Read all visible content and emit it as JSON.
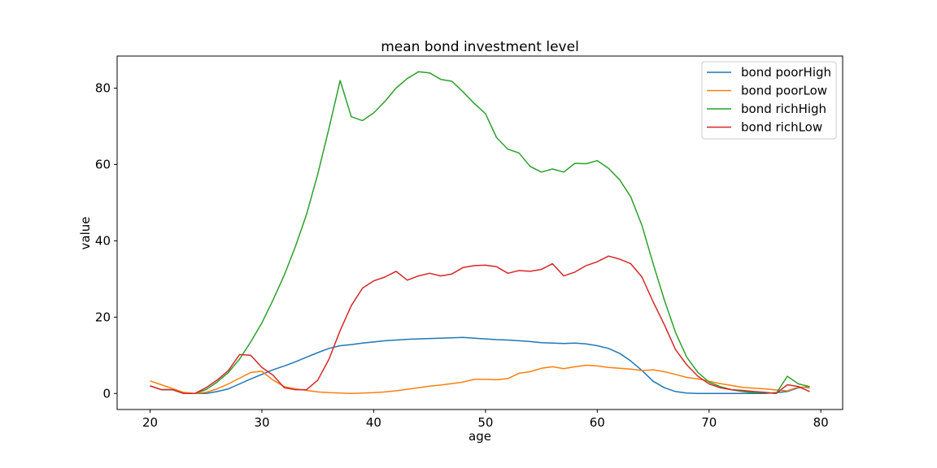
{
  "chart_data": {
    "type": "line",
    "title": "mean bond investment level",
    "xlabel": "age",
    "ylabel": "value",
    "xlim": [
      17.05,
      81.95
    ],
    "ylim": [
      -4.2,
      88.4
    ],
    "xticks": [
      20,
      30,
      40,
      50,
      60,
      70,
      80
    ],
    "yticks": [
      0,
      20,
      40,
      60,
      80
    ],
    "grid": false,
    "legend_position": "top-right",
    "x": [
      20,
      21,
      22,
      23,
      24,
      25,
      26,
      27,
      28,
      29,
      30,
      31,
      32,
      33,
      34,
      35,
      36,
      37,
      38,
      39,
      40,
      41,
      42,
      43,
      44,
      45,
      46,
      47,
      48,
      49,
      50,
      51,
      52,
      53,
      54,
      55,
      56,
      57,
      58,
      59,
      60,
      61,
      62,
      63,
      64,
      65,
      66,
      67,
      68,
      69,
      70,
      71,
      72,
      73,
      74,
      75,
      76,
      77,
      78,
      79
    ],
    "series": [
      {
        "name": "bond poorHigh",
        "color": "#1f77b4",
        "values": [
          2.0,
          1.0,
          1.0,
          0.0,
          0.0,
          0.0,
          0.5,
          1.2,
          2.5,
          3.8,
          5.0,
          6.2,
          7.2,
          8.3,
          9.5,
          10.7,
          11.8,
          12.5,
          12.8,
          13.2,
          13.5,
          13.8,
          14.0,
          14.2,
          14.3,
          14.4,
          14.5,
          14.6,
          14.7,
          14.5,
          14.3,
          14.1,
          14.0,
          13.8,
          13.6,
          13.3,
          13.2,
          13.1,
          13.2,
          13.0,
          12.5,
          11.8,
          10.5,
          8.5,
          6.0,
          3.2,
          1.5,
          0.5,
          0.1,
          0.0,
          0.0,
          0.0,
          0.0,
          0.0,
          0.0,
          0.0,
          0.2,
          0.5,
          1.5,
          1.8
        ]
      },
      {
        "name": "bond poorLow",
        "color": "#ff7f0e",
        "values": [
          3.3,
          2.3,
          1.3,
          0.3,
          0.0,
          0.3,
          1.2,
          2.5,
          4.0,
          5.5,
          5.8,
          3.5,
          1.8,
          1.2,
          0.8,
          0.4,
          0.2,
          0.1,
          0.0,
          0.1,
          0.2,
          0.4,
          0.7,
          1.1,
          1.5,
          1.9,
          2.2,
          2.6,
          3.0,
          3.7,
          3.7,
          3.6,
          3.9,
          5.3,
          5.7,
          6.6,
          7.0,
          6.5,
          7.0,
          7.4,
          7.2,
          6.8,
          6.6,
          6.4,
          6.0,
          6.2,
          5.7,
          5.0,
          4.2,
          3.8,
          3.2,
          2.6,
          2.1,
          1.6,
          1.4,
          1.2,
          0.9,
          0.7,
          1.7,
          1.5
        ]
      },
      {
        "name": "bond richHigh",
        "color": "#2ca02c",
        "values": [
          2.0,
          1.0,
          1.0,
          0.0,
          0.0,
          1.0,
          3.0,
          5.5,
          9.0,
          13.5,
          18.5,
          24.5,
          31.0,
          38.5,
          47.0,
          57.5,
          69.5,
          82.0,
          72.5,
          71.5,
          73.5,
          76.5,
          80.0,
          82.5,
          84.3,
          84.0,
          82.3,
          81.8,
          79.0,
          76.0,
          73.3,
          67.0,
          64.0,
          63.0,
          59.5,
          58.0,
          58.8,
          58.0,
          60.3,
          60.2,
          61.0,
          59.0,
          56.0,
          51.5,
          44.0,
          34.0,
          24.5,
          16.0,
          9.5,
          5.5,
          3.0,
          1.8,
          1.0,
          0.5,
          0.2,
          0.2,
          0.0,
          4.5,
          2.5,
          1.8
        ]
      },
      {
        "name": "bond richLow",
        "color": "#d62728",
        "values": [
          2.0,
          1.0,
          1.0,
          0.0,
          0.0,
          1.5,
          3.5,
          6.0,
          10.2,
          10.0,
          6.8,
          4.8,
          1.5,
          1.0,
          1.0,
          3.5,
          9.0,
          16.5,
          23.0,
          27.6,
          29.5,
          30.5,
          32.0,
          29.7,
          30.8,
          31.5,
          30.8,
          31.3,
          33.0,
          33.5,
          33.6,
          33.2,
          31.5,
          32.2,
          32.0,
          32.5,
          34.0,
          30.8,
          31.8,
          33.5,
          34.5,
          36.0,
          35.2,
          34.0,
          30.5,
          24.0,
          18.0,
          11.5,
          7.5,
          4.5,
          2.5,
          1.5,
          1.0,
          0.8,
          0.5,
          0.3,
          0.0,
          2.3,
          1.8,
          0.5
        ]
      }
    ]
  }
}
